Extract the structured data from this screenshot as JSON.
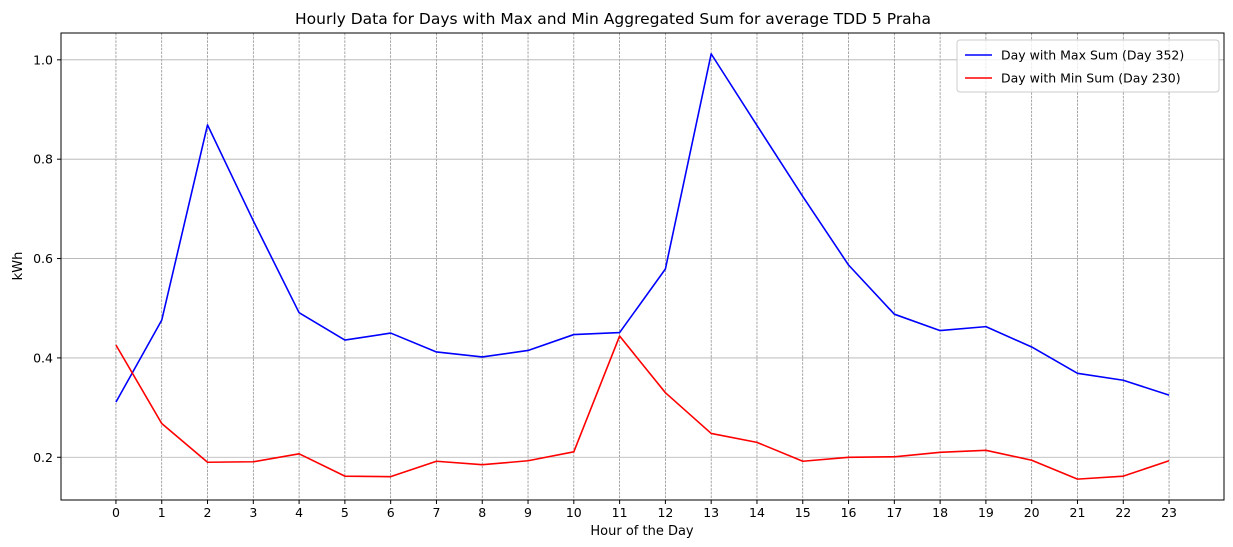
{
  "chart_data": {
    "type": "line",
    "title": "Hourly Data for Days with Max and Min Aggregated Sum for average TDD 5 Praha",
    "xlabel": "Hour of the Day",
    "ylabel": "kWh",
    "x": [
      0,
      1,
      2,
      3,
      4,
      5,
      6,
      7,
      8,
      9,
      10,
      11,
      12,
      13,
      14,
      15,
      16,
      17,
      18,
      19,
      20,
      21,
      22,
      23
    ],
    "xticks": [
      "0",
      "1",
      "2",
      "3",
      "4",
      "5",
      "6",
      "7",
      "8",
      "9",
      "10",
      "11",
      "12",
      "13",
      "14",
      "15",
      "16",
      "17",
      "18",
      "19",
      "20",
      "21",
      "22",
      "23"
    ],
    "yticks": [
      0.2,
      0.4,
      0.6,
      0.8,
      1.0
    ],
    "ytick_labels": [
      "0.2",
      "0.4",
      "0.6",
      "0.8",
      "1.0"
    ],
    "xlim": [
      -1.2,
      24.2
    ],
    "ylim": [
      0.114,
      1.054
    ],
    "grid": true,
    "legend_position": "top-right",
    "series": [
      {
        "name": "Day with Max Sum (Day 352)",
        "color": "#0000ff",
        "values": [
          0.311,
          0.476,
          0.869,
          0.676,
          0.491,
          0.436,
          0.45,
          0.412,
          0.402,
          0.415,
          0.447,
          0.451,
          0.579,
          1.012,
          0.868,
          0.725,
          0.587,
          0.488,
          0.455,
          0.463,
          0.422,
          0.369,
          0.355,
          0.325
        ]
      },
      {
        "name": "Day with Min Sum (Day 230)",
        "color": "#ff0000",
        "values": [
          0.426,
          0.268,
          0.19,
          0.191,
          0.207,
          0.162,
          0.161,
          0.192,
          0.185,
          0.193,
          0.211,
          0.444,
          0.33,
          0.248,
          0.23,
          0.192,
          0.2,
          0.201,
          0.21,
          0.214,
          0.194,
          0.156,
          0.162,
          0.193
        ]
      }
    ]
  }
}
